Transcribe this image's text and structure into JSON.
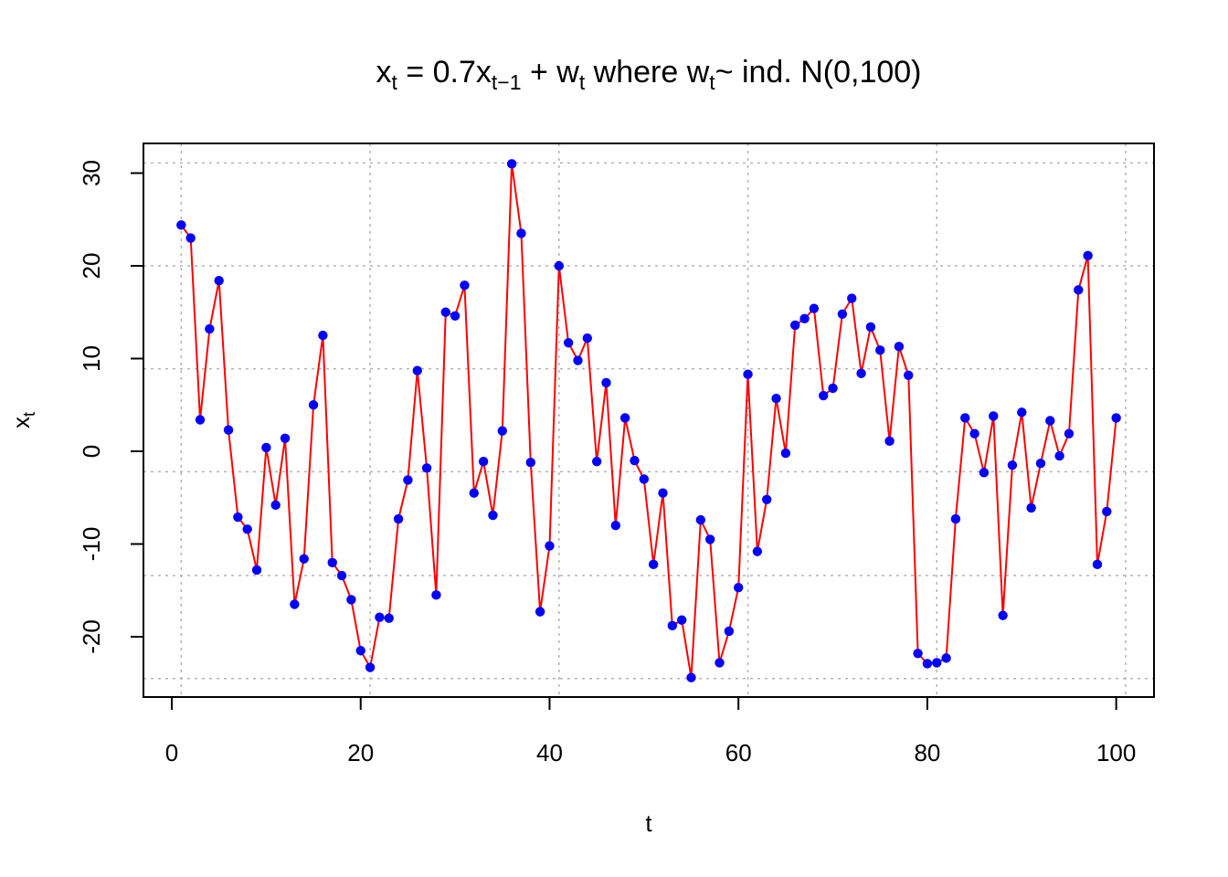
{
  "chart_data": {
    "type": "line",
    "title": {
      "p1": "x",
      "s1": "t",
      "p2": " = 0.7x",
      "s2": "t−1",
      "p3": " + w",
      "s3": "t",
      "p4": " where w",
      "s4": "t",
      "p5": "~ ind. N(0,100)"
    },
    "xlabel": "t",
    "ylabel": {
      "main": "x",
      "sub": "t"
    },
    "xlim": [
      -3,
      104
    ],
    "ylim": [
      -26.5,
      33.2
    ],
    "x_ticks": [
      0,
      20,
      40,
      60,
      80,
      100
    ],
    "y_ticks": [
      -20,
      -10,
      0,
      10,
      20,
      30
    ],
    "x_tick_labels": [
      "0",
      "20",
      "40",
      "60",
      "80",
      "100"
    ],
    "y_tick_labels": [
      "-20",
      "-10",
      "0",
      "10",
      "20",
      "30"
    ],
    "x_grid": [
      1,
      21,
      41,
      61,
      81,
      101
    ],
    "y_grid": [
      -24.5,
      -13.4,
      -2.2,
      8.9,
      20.0,
      31.1
    ],
    "grid": true,
    "colors": {
      "line": "#ff0000",
      "points": "#0000ff",
      "grid": "#b3b3b3",
      "axis": "#000000"
    },
    "x": [
      1,
      2,
      3,
      4,
      5,
      6,
      7,
      8,
      9,
      10,
      11,
      12,
      13,
      14,
      15,
      16,
      17,
      18,
      19,
      20,
      21,
      22,
      23,
      24,
      25,
      26,
      27,
      28,
      29,
      30,
      31,
      32,
      33,
      34,
      35,
      36,
      37,
      38,
      39,
      40,
      41,
      42,
      43,
      44,
      45,
      46,
      47,
      48,
      49,
      50,
      51,
      52,
      53,
      54,
      55,
      56,
      57,
      58,
      59,
      60,
      61,
      62,
      63,
      64,
      65,
      66,
      67,
      68,
      69,
      70,
      71,
      72,
      73,
      74,
      75,
      76,
      77,
      78,
      79,
      80,
      81,
      82,
      83,
      84,
      85,
      86,
      87,
      88,
      89,
      90,
      91,
      92,
      93,
      94,
      95,
      96,
      97,
      98,
      99,
      100
    ],
    "series": [
      {
        "values": [
          24.4,
          23.0,
          3.4,
          13.2,
          18.4,
          2.3,
          -7.1,
          -8.4,
          -12.8,
          0.4,
          -5.8,
          1.4,
          -16.5,
          -11.6,
          5.0,
          12.5,
          -12.0,
          -13.4,
          -16.0,
          -21.5,
          -23.3,
          -17.9,
          -18.0,
          -7.3,
          -3.1,
          8.7,
          -1.8,
          -15.5,
          15.0,
          14.6,
          17.9,
          -4.5,
          -1.1,
          -6.9,
          2.2,
          31.0,
          23.5,
          -1.2,
          -17.3,
          -10.2,
          20.0,
          11.7,
          9.8,
          12.2,
          -1.1,
          7.4,
          -8.0,
          3.6,
          -1.0,
          -3.0,
          -12.2,
          -4.5,
          -18.8,
          -18.2,
          -24.4,
          -7.4,
          -9.5,
          -22.8,
          -19.4,
          -14.7,
          8.3,
          -10.8,
          -5.2,
          5.7,
          -0.2,
          13.6,
          14.3,
          15.4,
          6.0,
          6.8,
          14.8,
          16.5,
          8.4,
          13.4,
          10.9,
          1.1,
          11.3,
          8.2,
          -21.8,
          -22.9,
          -22.8,
          -22.3,
          -7.3,
          3.6,
          1.9,
          -2.3,
          3.8,
          -17.7,
          -1.5,
          4.2,
          -6.1,
          -1.3,
          3.3,
          -0.5,
          1.9,
          17.4,
          21.1,
          -12.2,
          -6.5,
          3.6
        ]
      }
    ]
  }
}
